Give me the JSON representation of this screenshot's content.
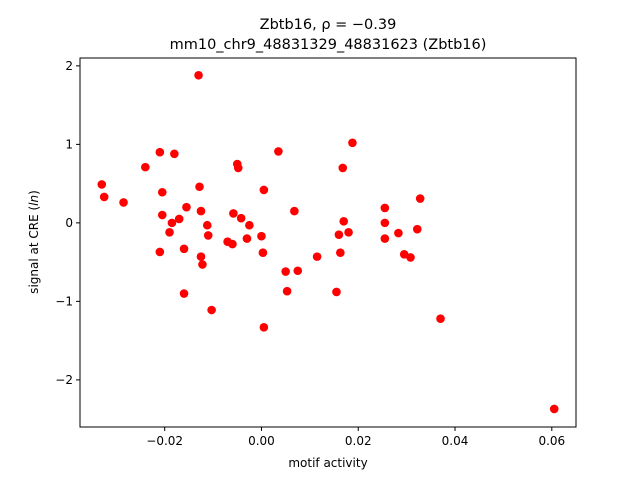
{
  "chart_data": {
    "type": "scatter",
    "title": "Zbtb16, ρ = −0.39",
    "subtitle": "mm10_chr9_48831329_48831623 (Zbtb16)",
    "xlabel": "motif activity",
    "ylabel": "signal at CRE (ln)",
    "xlim": [
      -0.0375,
      0.065
    ],
    "ylim": [
      -2.6,
      2.1
    ],
    "xticks": [
      -0.02,
      0.0,
      0.02,
      0.04,
      0.06
    ],
    "xtick_labels": [
      "−0.02",
      "0.00",
      "0.02",
      "0.04",
      "0.06"
    ],
    "yticks": [
      -2,
      -1,
      0,
      1,
      2
    ],
    "ytick_labels": [
      "−2",
      "−1",
      "0",
      "1",
      "2"
    ],
    "grid": false,
    "marker_color": "#ff0000",
    "points": [
      {
        "x": -0.033,
        "y": 0.49
      },
      {
        "x": -0.0325,
        "y": 0.33
      },
      {
        "x": -0.0285,
        "y": 0.26
      },
      {
        "x": -0.024,
        "y": 0.71
      },
      {
        "x": -0.021,
        "y": 0.9
      },
      {
        "x": -0.0205,
        "y": 0.39
      },
      {
        "x": -0.0205,
        "y": 0.1
      },
      {
        "x": -0.021,
        "y": -0.37
      },
      {
        "x": -0.018,
        "y": 0.88
      },
      {
        "x": -0.019,
        "y": -0.12
      },
      {
        "x": -0.0185,
        "y": 0.0
      },
      {
        "x": -0.017,
        "y": 0.05
      },
      {
        "x": -0.0155,
        "y": 0.2
      },
      {
        "x": -0.016,
        "y": -0.33
      },
      {
        "x": -0.016,
        "y": -0.9
      },
      {
        "x": -0.013,
        "y": 1.88
      },
      {
        "x": -0.0128,
        "y": 0.46
      },
      {
        "x": -0.0125,
        "y": 0.15
      },
      {
        "x": -0.0125,
        "y": -0.43
      },
      {
        "x": -0.0122,
        "y": -0.53
      },
      {
        "x": -0.0112,
        "y": -0.03
      },
      {
        "x": -0.011,
        "y": -0.16
      },
      {
        "x": -0.0103,
        "y": -1.11
      },
      {
        "x": -0.007,
        "y": -0.24
      },
      {
        "x": -0.006,
        "y": -0.27
      },
      {
        "x": -0.0058,
        "y": 0.12
      },
      {
        "x": -0.005,
        "y": 0.75
      },
      {
        "x": -0.0048,
        "y": 0.7
      },
      {
        "x": -0.0042,
        "y": 0.06
      },
      {
        "x": -0.003,
        "y": -0.2
      },
      {
        "x": -0.0025,
        "y": -0.03
      },
      {
        "x": 0.0,
        "y": -0.17
      },
      {
        "x": 0.0005,
        "y": 0.42
      },
      {
        "x": 0.0003,
        "y": -0.38
      },
      {
        "x": 0.0005,
        "y": -1.33
      },
      {
        "x": 0.0035,
        "y": 0.91
      },
      {
        "x": 0.005,
        "y": -0.62
      },
      {
        "x": 0.0053,
        "y": -0.87
      },
      {
        "x": 0.0068,
        "y": 0.15
      },
      {
        "x": 0.0075,
        "y": -0.61
      },
      {
        "x": 0.0115,
        "y": -0.43
      },
      {
        "x": 0.0155,
        "y": -0.88
      },
      {
        "x": 0.016,
        "y": -0.15
      },
      {
        "x": 0.0163,
        "y": -0.38
      },
      {
        "x": 0.0168,
        "y": 0.7
      },
      {
        "x": 0.017,
        "y": 0.02
      },
      {
        "x": 0.018,
        "y": -0.12
      },
      {
        "x": 0.0188,
        "y": 1.02
      },
      {
        "x": 0.0255,
        "y": 0.19
      },
      {
        "x": 0.0255,
        "y": 0.0
      },
      {
        "x": 0.0255,
        "y": -0.2
      },
      {
        "x": 0.0283,
        "y": -0.13
      },
      {
        "x": 0.0295,
        "y": -0.4
      },
      {
        "x": 0.0308,
        "y": -0.44
      },
      {
        "x": 0.0322,
        "y": -0.08
      },
      {
        "x": 0.0328,
        "y": 0.31
      },
      {
        "x": 0.037,
        "y": -1.22
      },
      {
        "x": 0.0605,
        "y": -2.37
      }
    ]
  }
}
